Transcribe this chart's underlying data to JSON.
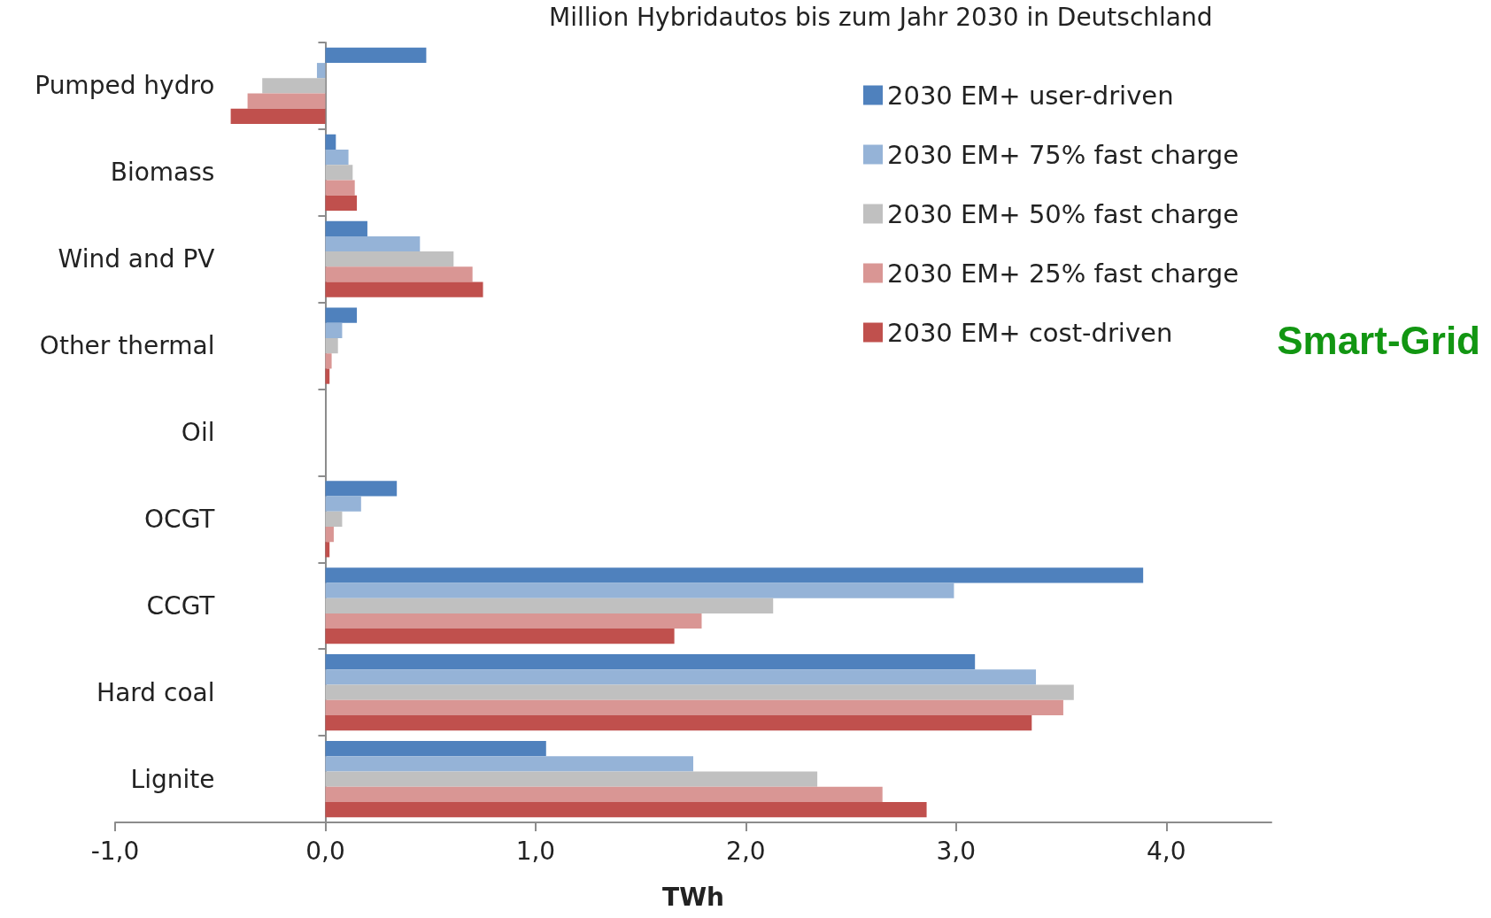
{
  "chart_data": {
    "type": "bar",
    "orientation": "horizontal",
    "title": "Million Hybridautos bis zum Jahr 2030 in Deutschland",
    "xlabel": "TWh",
    "categories": [
      "Pumped hydro",
      "Biomass",
      "Wind and PV",
      "Other thermal",
      "Oil",
      "OCGT",
      "CCGT",
      "Hard coal",
      "Lignite"
    ],
    "series": [
      {
        "name": "2030 EM+ user-driven",
        "color": "#4f81bd",
        "values": [
          0.48,
          0.05,
          0.2,
          0.15,
          0,
          0.34,
          3.89,
          3.09,
          1.05
        ]
      },
      {
        "name": "2030 EM+ 75% fast charge",
        "color": "#95b3d7",
        "values": [
          -0.04,
          0.11,
          0.45,
          0.08,
          0,
          0.17,
          2.99,
          3.38,
          1.75
        ]
      },
      {
        "name": "2030 EM+ 50% fast charge",
        "color": "#c0c0c0",
        "values": [
          -0.3,
          0.13,
          0.61,
          0.06,
          0,
          0.08,
          2.13,
          3.56,
          2.34
        ]
      },
      {
        "name": "2030 EM+ 25% fast charge",
        "color": "#d99694",
        "values": [
          -0.37,
          0.14,
          0.7,
          0.03,
          0,
          0.04,
          1.79,
          3.51,
          2.65
        ]
      },
      {
        "name": "2030 EM+ cost-driven",
        "color": "#c0504d",
        "values": [
          -0.45,
          0.15,
          0.75,
          0.02,
          0,
          0.02,
          1.66,
          3.36,
          2.86
        ]
      }
    ],
    "xlim": [
      -1,
      4.5
    ],
    "xticks": [
      {
        "value": -1,
        "label": "-1,0"
      },
      {
        "value": 0,
        "label": "0,0"
      },
      {
        "value": 1,
        "label": "1,0"
      },
      {
        "value": 2,
        "label": "2,0"
      },
      {
        "value": 3,
        "label": "3,0"
      },
      {
        "value": 4,
        "label": "4,0"
      }
    ],
    "legend": "top right",
    "annotations": [
      "Smart-Grid"
    ]
  }
}
